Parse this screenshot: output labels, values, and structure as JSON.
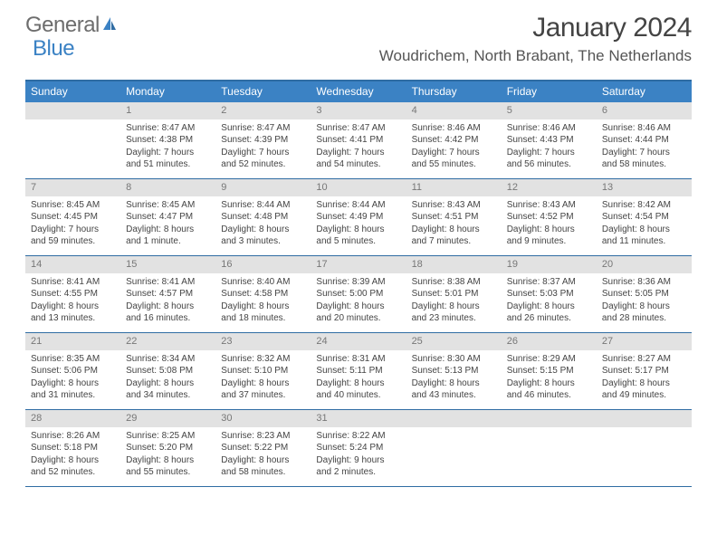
{
  "brand": {
    "part1": "General",
    "part2": "Blue"
  },
  "title": "January 2024",
  "location": "Woudrichem, North Brabant, The Netherlands",
  "colors": {
    "header_bg": "#3b82c4",
    "header_border": "#2f6ca3",
    "daynum_bg": "#e2e2e2",
    "daynum_text": "#777777",
    "body_text": "#444444",
    "logo_gray": "#6d6d6d",
    "logo_blue": "#3b82c4"
  },
  "day_names": [
    "Sunday",
    "Monday",
    "Tuesday",
    "Wednesday",
    "Thursday",
    "Friday",
    "Saturday"
  ],
  "weeks": [
    [
      {
        "n": "",
        "sr": "",
        "ss": "",
        "dl1": "",
        "dl2": ""
      },
      {
        "n": "1",
        "sr": "Sunrise: 8:47 AM",
        "ss": "Sunset: 4:38 PM",
        "dl1": "Daylight: 7 hours",
        "dl2": "and 51 minutes."
      },
      {
        "n": "2",
        "sr": "Sunrise: 8:47 AM",
        "ss": "Sunset: 4:39 PM",
        "dl1": "Daylight: 7 hours",
        "dl2": "and 52 minutes."
      },
      {
        "n": "3",
        "sr": "Sunrise: 8:47 AM",
        "ss": "Sunset: 4:41 PM",
        "dl1": "Daylight: 7 hours",
        "dl2": "and 54 minutes."
      },
      {
        "n": "4",
        "sr": "Sunrise: 8:46 AM",
        "ss": "Sunset: 4:42 PM",
        "dl1": "Daylight: 7 hours",
        "dl2": "and 55 minutes."
      },
      {
        "n": "5",
        "sr": "Sunrise: 8:46 AM",
        "ss": "Sunset: 4:43 PM",
        "dl1": "Daylight: 7 hours",
        "dl2": "and 56 minutes."
      },
      {
        "n": "6",
        "sr": "Sunrise: 8:46 AM",
        "ss": "Sunset: 4:44 PM",
        "dl1": "Daylight: 7 hours",
        "dl2": "and 58 minutes."
      }
    ],
    [
      {
        "n": "7",
        "sr": "Sunrise: 8:45 AM",
        "ss": "Sunset: 4:45 PM",
        "dl1": "Daylight: 7 hours",
        "dl2": "and 59 minutes."
      },
      {
        "n": "8",
        "sr": "Sunrise: 8:45 AM",
        "ss": "Sunset: 4:47 PM",
        "dl1": "Daylight: 8 hours",
        "dl2": "and 1 minute."
      },
      {
        "n": "9",
        "sr": "Sunrise: 8:44 AM",
        "ss": "Sunset: 4:48 PM",
        "dl1": "Daylight: 8 hours",
        "dl2": "and 3 minutes."
      },
      {
        "n": "10",
        "sr": "Sunrise: 8:44 AM",
        "ss": "Sunset: 4:49 PM",
        "dl1": "Daylight: 8 hours",
        "dl2": "and 5 minutes."
      },
      {
        "n": "11",
        "sr": "Sunrise: 8:43 AM",
        "ss": "Sunset: 4:51 PM",
        "dl1": "Daylight: 8 hours",
        "dl2": "and 7 minutes."
      },
      {
        "n": "12",
        "sr": "Sunrise: 8:43 AM",
        "ss": "Sunset: 4:52 PM",
        "dl1": "Daylight: 8 hours",
        "dl2": "and 9 minutes."
      },
      {
        "n": "13",
        "sr": "Sunrise: 8:42 AM",
        "ss": "Sunset: 4:54 PM",
        "dl1": "Daylight: 8 hours",
        "dl2": "and 11 minutes."
      }
    ],
    [
      {
        "n": "14",
        "sr": "Sunrise: 8:41 AM",
        "ss": "Sunset: 4:55 PM",
        "dl1": "Daylight: 8 hours",
        "dl2": "and 13 minutes."
      },
      {
        "n": "15",
        "sr": "Sunrise: 8:41 AM",
        "ss": "Sunset: 4:57 PM",
        "dl1": "Daylight: 8 hours",
        "dl2": "and 16 minutes."
      },
      {
        "n": "16",
        "sr": "Sunrise: 8:40 AM",
        "ss": "Sunset: 4:58 PM",
        "dl1": "Daylight: 8 hours",
        "dl2": "and 18 minutes."
      },
      {
        "n": "17",
        "sr": "Sunrise: 8:39 AM",
        "ss": "Sunset: 5:00 PM",
        "dl1": "Daylight: 8 hours",
        "dl2": "and 20 minutes."
      },
      {
        "n": "18",
        "sr": "Sunrise: 8:38 AM",
        "ss": "Sunset: 5:01 PM",
        "dl1": "Daylight: 8 hours",
        "dl2": "and 23 minutes."
      },
      {
        "n": "19",
        "sr": "Sunrise: 8:37 AM",
        "ss": "Sunset: 5:03 PM",
        "dl1": "Daylight: 8 hours",
        "dl2": "and 26 minutes."
      },
      {
        "n": "20",
        "sr": "Sunrise: 8:36 AM",
        "ss": "Sunset: 5:05 PM",
        "dl1": "Daylight: 8 hours",
        "dl2": "and 28 minutes."
      }
    ],
    [
      {
        "n": "21",
        "sr": "Sunrise: 8:35 AM",
        "ss": "Sunset: 5:06 PM",
        "dl1": "Daylight: 8 hours",
        "dl2": "and 31 minutes."
      },
      {
        "n": "22",
        "sr": "Sunrise: 8:34 AM",
        "ss": "Sunset: 5:08 PM",
        "dl1": "Daylight: 8 hours",
        "dl2": "and 34 minutes."
      },
      {
        "n": "23",
        "sr": "Sunrise: 8:32 AM",
        "ss": "Sunset: 5:10 PM",
        "dl1": "Daylight: 8 hours",
        "dl2": "and 37 minutes."
      },
      {
        "n": "24",
        "sr": "Sunrise: 8:31 AM",
        "ss": "Sunset: 5:11 PM",
        "dl1": "Daylight: 8 hours",
        "dl2": "and 40 minutes."
      },
      {
        "n": "25",
        "sr": "Sunrise: 8:30 AM",
        "ss": "Sunset: 5:13 PM",
        "dl1": "Daylight: 8 hours",
        "dl2": "and 43 minutes."
      },
      {
        "n": "26",
        "sr": "Sunrise: 8:29 AM",
        "ss": "Sunset: 5:15 PM",
        "dl1": "Daylight: 8 hours",
        "dl2": "and 46 minutes."
      },
      {
        "n": "27",
        "sr": "Sunrise: 8:27 AM",
        "ss": "Sunset: 5:17 PM",
        "dl1": "Daylight: 8 hours",
        "dl2": "and 49 minutes."
      }
    ],
    [
      {
        "n": "28",
        "sr": "Sunrise: 8:26 AM",
        "ss": "Sunset: 5:18 PM",
        "dl1": "Daylight: 8 hours",
        "dl2": "and 52 minutes."
      },
      {
        "n": "29",
        "sr": "Sunrise: 8:25 AM",
        "ss": "Sunset: 5:20 PM",
        "dl1": "Daylight: 8 hours",
        "dl2": "and 55 minutes."
      },
      {
        "n": "30",
        "sr": "Sunrise: 8:23 AM",
        "ss": "Sunset: 5:22 PM",
        "dl1": "Daylight: 8 hours",
        "dl2": "and 58 minutes."
      },
      {
        "n": "31",
        "sr": "Sunrise: 8:22 AM",
        "ss": "Sunset: 5:24 PM",
        "dl1": "Daylight: 9 hours",
        "dl2": "and 2 minutes."
      },
      {
        "n": "",
        "sr": "",
        "ss": "",
        "dl1": "",
        "dl2": ""
      },
      {
        "n": "",
        "sr": "",
        "ss": "",
        "dl1": "",
        "dl2": ""
      },
      {
        "n": "",
        "sr": "",
        "ss": "",
        "dl1": "",
        "dl2": ""
      }
    ]
  ]
}
